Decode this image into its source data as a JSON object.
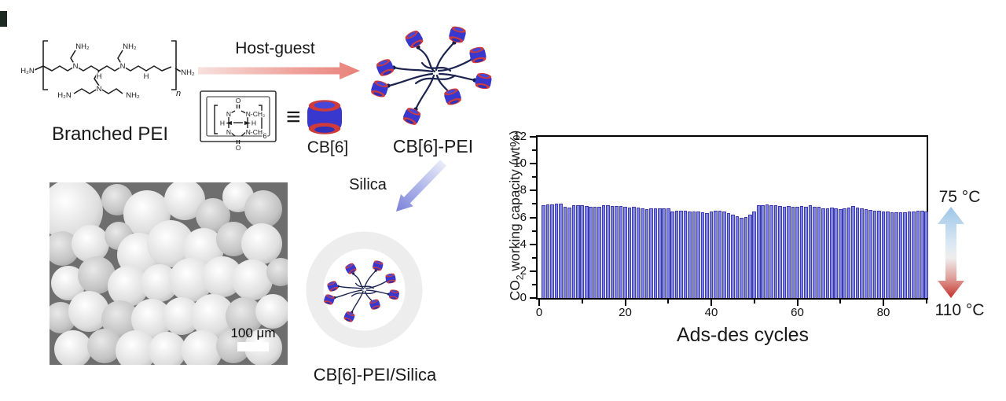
{
  "scheme": {
    "pei": {
      "label": "Branched PEI",
      "labels": [
        "H₂N",
        "NH₂",
        "NH₂",
        "N",
        "N",
        "H",
        "H",
        "N",
        "H₂N",
        "NH₂",
        "NH₂",
        "n"
      ]
    },
    "host_guest_arrow_label": "Host-guest",
    "cb6": {
      "label": "CB[6]",
      "equiv": "≡",
      "labels": [
        "O",
        "N",
        "N-CH₂",
        "H",
        "H",
        "N",
        "N-CH₂",
        "O",
        "6"
      ]
    },
    "cb6_pei_label": "CB[6]-PEI",
    "silica_arrow_label": "Silica",
    "cb6_pei_silica_label": "CB[6]-PEI/Silica",
    "barrel_body_color": "#3838cf",
    "barrel_rim_color": "#cf3b3b"
  },
  "sem": {
    "scale_label": "100 μm",
    "background": "#6e6e6e",
    "particles": [
      [
        28,
        36,
        40,
        2
      ],
      [
        86,
        22,
        20,
        1
      ],
      [
        124,
        40,
        30,
        2
      ],
      [
        172,
        22,
        26,
        2
      ],
      [
        208,
        42,
        22,
        1
      ],
      [
        240,
        18,
        20,
        2
      ],
      [
        272,
        34,
        24,
        1
      ],
      [
        16,
        84,
        22,
        1
      ],
      [
        52,
        78,
        24,
        2
      ],
      [
        88,
        68,
        18,
        1
      ],
      [
        114,
        92,
        28,
        2
      ],
      [
        154,
        78,
        30,
        2
      ],
      [
        196,
        84,
        26,
        2
      ],
      [
        234,
        72,
        22,
        1
      ],
      [
        270,
        78,
        26,
        2
      ],
      [
        24,
        128,
        22,
        2
      ],
      [
        60,
        118,
        24,
        1
      ],
      [
        100,
        132,
        26,
        2
      ],
      [
        140,
        128,
        24,
        2
      ],
      [
        180,
        124,
        28,
        2
      ],
      [
        220,
        120,
        26,
        2
      ],
      [
        258,
        124,
        26,
        2
      ],
      [
        294,
        114,
        18,
        1
      ],
      [
        14,
        172,
        20,
        1
      ],
      [
        50,
        164,
        26,
        2
      ],
      [
        90,
        174,
        24,
        1
      ],
      [
        130,
        174,
        26,
        2
      ],
      [
        168,
        170,
        24,
        2
      ],
      [
        208,
        170,
        28,
        2
      ],
      [
        248,
        170,
        24,
        1
      ],
      [
        284,
        164,
        22,
        2
      ],
      [
        30,
        212,
        24,
        2
      ],
      [
        70,
        208,
        22,
        1
      ],
      [
        110,
        214,
        26,
        2
      ],
      [
        150,
        214,
        24,
        2
      ],
      [
        194,
        214,
        26,
        2
      ],
      [
        234,
        208,
        22,
        1
      ],
      [
        272,
        210,
        24,
        2
      ]
    ]
  },
  "chart": {
    "ylabel_pre": "CO",
    "ylabel_sub": "2",
    "ylabel_post": " working capacity (wt%)",
    "xlabel": "Ads-des cycles",
    "yticks": [
      0,
      2,
      4,
      6,
      8,
      10,
      12
    ],
    "y_minor": [
      1,
      3,
      5,
      7,
      9,
      11
    ],
    "xticks": [
      0,
      20,
      40,
      60,
      80
    ],
    "x_minor": [
      10,
      30,
      50,
      70,
      90
    ],
    "temp_high": "75 °C",
    "temp_low": "110 °C",
    "bar_fill": "#8286dd",
    "bar_border": "#3c3cb0"
  },
  "chart_data": {
    "type": "bar",
    "title": "",
    "xlabel": "Ads-des cycles",
    "ylabel": "CO2 working capacity (wt%)",
    "xlim": [
      0,
      91
    ],
    "ylim": [
      0,
      12
    ],
    "x_start": 1,
    "x_step": 1,
    "values": [
      6.92,
      6.95,
      6.97,
      7.0,
      7.0,
      6.78,
      6.72,
      6.88,
      6.9,
      6.88,
      6.85,
      6.8,
      6.78,
      6.82,
      6.88,
      6.88,
      6.85,
      6.84,
      6.85,
      6.8,
      6.72,
      6.78,
      6.72,
      6.68,
      6.6,
      6.65,
      6.68,
      6.65,
      6.68,
      6.65,
      6.45,
      6.48,
      6.5,
      6.48,
      6.42,
      6.45,
      6.42,
      6.38,
      6.35,
      6.42,
      6.48,
      6.52,
      6.45,
      6.3,
      6.18,
      6.1,
      6.0,
      6.05,
      6.18,
      6.45,
      6.88,
      6.92,
      6.95,
      6.9,
      6.88,
      6.85,
      6.82,
      6.85,
      6.8,
      6.78,
      6.85,
      6.8,
      6.88,
      6.82,
      6.78,
      6.7,
      6.65,
      6.72,
      6.68,
      6.62,
      6.68,
      6.75,
      6.85,
      6.72,
      6.68,
      6.62,
      6.55,
      6.5,
      6.48,
      6.45,
      6.42,
      6.4,
      6.4,
      6.38,
      6.4,
      6.42,
      6.45,
      6.48,
      6.5,
      6.45
    ]
  }
}
